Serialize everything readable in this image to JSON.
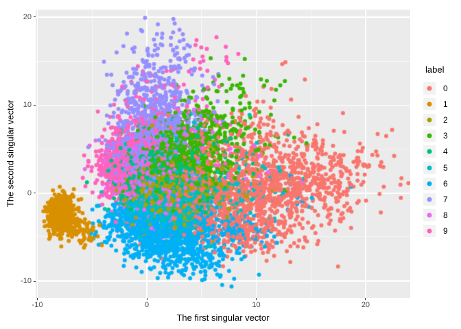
{
  "chart_data": {
    "type": "scatter",
    "title": "",
    "xlabel": "The first singular vector",
    "ylabel": "The second singular vector",
    "x_axis": {
      "range": [
        -10.16,
        24.08
      ],
      "major_ticks": [
        -10,
        0,
        10,
        20
      ],
      "minor_ticks": [
        -5,
        5,
        15
      ]
    },
    "y_axis": {
      "range": [
        -11.93,
        20.85
      ],
      "major_ticks": [
        -10,
        0,
        10,
        20
      ],
      "minor_ticks": [
        -5,
        5,
        15
      ]
    },
    "legend": {
      "title": "label",
      "position": "right"
    },
    "panel_bg": "#EBEBEB",
    "grid_color": "#FFFFFF",
    "tick_color": "#333333",
    "tick_text_color": "#4D4D4D",
    "point_radius": 3,
    "cluster_fields": [
      "center_x",
      "center_y",
      "sd_x",
      "sd_y",
      "count"
    ],
    "series": [
      {
        "label": "0",
        "color": "#F8766D",
        "clusters": [
          [
            10.5,
            0.8,
            4.0,
            2.8,
            800
          ],
          [
            6.0,
            -1.0,
            2.5,
            2.0,
            250
          ],
          [
            9.0,
            -4.5,
            2.8,
            1.3,
            200
          ],
          [
            15.5,
            2.0,
            3.3,
            2.4,
            200
          ],
          [
            9.5,
            6.5,
            2.5,
            1.8,
            80
          ],
          [
            12.0,
            10.5,
            1.6,
            1.6,
            10
          ]
        ]
      },
      {
        "label": "1",
        "color": "#D89000",
        "clusters": [
          [
            -7.9,
            -2.5,
            0.55,
            1.0,
            600
          ],
          [
            -7.3,
            -1.0,
            0.5,
            0.5,
            60
          ],
          [
            -6.2,
            -4.0,
            0.9,
            0.8,
            70
          ],
          [
            -5.0,
            -5.2,
            0.7,
            0.5,
            12
          ]
        ]
      },
      {
        "label": "2",
        "color": "#A3A500",
        "clusters": [
          [
            1.8,
            0.4,
            1.8,
            1.3,
            420
          ],
          [
            2.8,
            -2.3,
            1.8,
            1.0,
            130
          ],
          [
            6.5,
            0.5,
            2.0,
            1.3,
            60
          ],
          [
            5.5,
            6.0,
            2.0,
            1.5,
            15
          ]
        ]
      },
      {
        "label": "3",
        "color": "#39B600",
        "clusters": [
          [
            2.8,
            4.6,
            2.0,
            1.9,
            480
          ],
          [
            5.8,
            8.0,
            2.0,
            2.0,
            130
          ],
          [
            1.0,
            2.0,
            1.5,
            1.2,
            100
          ],
          [
            8.5,
            12.0,
            2.0,
            1.8,
            25
          ],
          [
            6.0,
            2.0,
            2.5,
            1.5,
            80
          ],
          [
            11.0,
            6.0,
            2.0,
            2.0,
            20
          ]
        ]
      },
      {
        "label": "4",
        "color": "#00BF7D",
        "clusters": [
          [
            1.2,
            2.5,
            1.7,
            1.7,
            500
          ],
          [
            -1.0,
            1.0,
            1.0,
            1.2,
            100
          ],
          [
            3.5,
            0.0,
            1.8,
            1.2,
            100
          ],
          [
            6.5,
            4.0,
            2.0,
            1.5,
            40
          ]
        ]
      },
      {
        "label": "5",
        "color": "#00BFC4",
        "clusters": [
          [
            1.8,
            -0.8,
            2.0,
            1.5,
            450
          ],
          [
            5.5,
            -0.5,
            2.5,
            1.5,
            150
          ],
          [
            2.5,
            -3.2,
            2.0,
            1.0,
            120
          ],
          [
            9.5,
            2.0,
            2.5,
            2.0,
            40
          ],
          [
            4.0,
            8.5,
            2.0,
            1.5,
            12
          ]
        ]
      },
      {
        "label": "6",
        "color": "#00B0F6",
        "clusters": [
          [
            1.5,
            -4.3,
            2.5,
            1.5,
            650
          ],
          [
            3.5,
            -6.8,
            2.2,
            1.1,
            200
          ],
          [
            -2.0,
            -2.8,
            1.2,
            1.0,
            120
          ],
          [
            7.5,
            -4.0,
            2.2,
            1.3,
            120
          ],
          [
            5.5,
            -9.0,
            1.5,
            0.8,
            25
          ],
          [
            13.5,
            -0.5,
            1.5,
            1.5,
            15
          ]
        ]
      },
      {
        "label": "7",
        "color": "#9590FF",
        "clusters": [
          [
            0.3,
            6.5,
            1.8,
            2.2,
            420
          ],
          [
            0.8,
            11.5,
            1.9,
            2.4,
            220
          ],
          [
            -1.8,
            4.0,
            1.0,
            1.3,
            130
          ],
          [
            1.5,
            16.5,
            1.5,
            1.8,
            45
          ],
          [
            3.5,
            8.5,
            1.5,
            1.5,
            60
          ]
        ]
      },
      {
        "label": "8",
        "color": "#E76BF3",
        "clusters": [
          [
            -0.8,
            2.8,
            1.5,
            2.0,
            330
          ],
          [
            1.5,
            0.3,
            1.8,
            1.5,
            140
          ],
          [
            2.5,
            6.5,
            1.8,
            1.5,
            50
          ],
          [
            0.5,
            -3.0,
            1.5,
            1.0,
            40
          ],
          [
            8.0,
            1.5,
            2.5,
            2.0,
            18
          ]
        ]
      },
      {
        "label": "9",
        "color": "#FF62BC",
        "clusters": [
          [
            -2.3,
            3.3,
            1.2,
            2.0,
            420
          ],
          [
            -0.5,
            6.5,
            1.5,
            2.0,
            150
          ],
          [
            0.5,
            0.5,
            1.5,
            1.3,
            120
          ],
          [
            2.0,
            11.0,
            2.2,
            2.2,
            60
          ],
          [
            5.0,
            16.5,
            1.8,
            1.5,
            12
          ],
          [
            4.5,
            5.5,
            2.0,
            2.0,
            50
          ]
        ]
      }
    ]
  }
}
